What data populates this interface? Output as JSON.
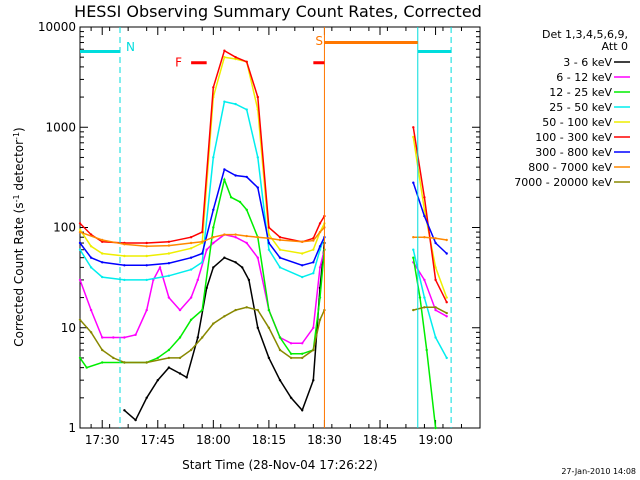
{
  "chart_data": {
    "type": "line",
    "title": "HESSI Observing Summary Count Rates, Corrected",
    "xlabel": "Start Time (28-Nov-04 17:26:22)",
    "ylabel": "Corrected Count Rate (s⁻¹ detector⁻¹)",
    "ylabel_main": "Corrected Count Rate (s",
    "ylabel_sup1": "-1",
    "ylabel_mid": " detector",
    "ylabel_sup2": "-1",
    "ylabel_end": ")",
    "yscale": "log",
    "ylim": [
      1,
      10000
    ],
    "xlim_min": [
      17.4,
      19.2
    ],
    "xticks": [
      {
        "v": 17.5,
        "label": "17:30"
      },
      {
        "v": 17.75,
        "label": "17:45"
      },
      {
        "v": 18.0,
        "label": "18:00"
      },
      {
        "v": 18.25,
        "label": "18:15"
      },
      {
        "v": 18.5,
        "label": "18:30"
      },
      {
        "v": 18.75,
        "label": "18:45"
      },
      {
        "v": 19.0,
        "label": "19:00"
      }
    ],
    "yticks": [
      {
        "v": 1,
        "label": "1"
      },
      {
        "v": 10,
        "label": "10"
      },
      {
        "v": 100,
        "label": "100"
      },
      {
        "v": 1000,
        "label": "1000"
      },
      {
        "v": 10000,
        "label": "10000"
      }
    ],
    "legend_header": [
      "Det 1,3,4,5,6,9,",
      "Att 0"
    ],
    "legend_position": "right",
    "series": [
      {
        "name": "3 - 6 keV",
        "color": "#000000",
        "points": [
          [
            17.6,
            1.5
          ],
          [
            17.65,
            1.2
          ],
          [
            17.7,
            2.0
          ],
          [
            17.75,
            3
          ],
          [
            17.8,
            4
          ],
          [
            17.85,
            3.5
          ],
          [
            17.88,
            3.2
          ],
          [
            17.93,
            8
          ],
          [
            17.97,
            25
          ],
          [
            18.0,
            40
          ],
          [
            18.05,
            50
          ],
          [
            18.1,
            45
          ],
          [
            18.13,
            40
          ],
          [
            18.16,
            30
          ],
          [
            18.2,
            10
          ],
          [
            18.25,
            5
          ],
          [
            18.3,
            3
          ],
          [
            18.35,
            2
          ],
          [
            18.4,
            1.5
          ],
          [
            18.45,
            3
          ],
          [
            18.48,
            25
          ],
          [
            18.5,
            70
          ]
        ]
      },
      {
        "name": "6 - 12 keV",
        "color": "#ff00ff",
        "points": [
          [
            17.4,
            30
          ],
          [
            17.45,
            15
          ],
          [
            17.5,
            8
          ],
          [
            17.55,
            8
          ],
          [
            17.6,
            8
          ],
          [
            17.65,
            8.5
          ],
          [
            17.7,
            15
          ],
          [
            17.73,
            30
          ],
          [
            17.76,
            40
          ],
          [
            17.8,
            20
          ],
          [
            17.85,
            15
          ],
          [
            17.9,
            20
          ],
          [
            17.93,
            30
          ],
          [
            17.97,
            60
          ],
          [
            18.0,
            70
          ],
          [
            18.05,
            85
          ],
          [
            18.1,
            80
          ],
          [
            18.15,
            70
          ],
          [
            18.2,
            50
          ],
          [
            18.25,
            15
          ],
          [
            18.3,
            8
          ],
          [
            18.35,
            7
          ],
          [
            18.4,
            7
          ],
          [
            18.45,
            10
          ],
          [
            18.48,
            40
          ],
          [
            18.5,
            60
          ],
          [
            18.9,
            45
          ],
          [
            18.95,
            30
          ],
          [
            19.0,
            15
          ],
          [
            19.05,
            13
          ]
        ]
      },
      {
        "name": "12 - 25 keV",
        "color": "#00ee00",
        "points": [
          [
            17.4,
            5
          ],
          [
            17.43,
            4
          ],
          [
            17.5,
            4.5
          ],
          [
            17.6,
            4.5
          ],
          [
            17.7,
            4.5
          ],
          [
            17.75,
            5
          ],
          [
            17.8,
            6
          ],
          [
            17.85,
            8
          ],
          [
            17.9,
            12
          ],
          [
            17.95,
            15
          ],
          [
            18.0,
            100
          ],
          [
            18.05,
            300
          ],
          [
            18.08,
            200
          ],
          [
            18.12,
            180
          ],
          [
            18.15,
            150
          ],
          [
            18.2,
            80
          ],
          [
            18.25,
            15
          ],
          [
            18.3,
            8
          ],
          [
            18.35,
            5.5
          ],
          [
            18.4,
            5.5
          ],
          [
            18.45,
            6
          ],
          [
            18.48,
            20
          ],
          [
            18.5,
            60
          ],
          [
            18.9,
            50
          ],
          [
            18.93,
            20
          ],
          [
            18.96,
            6
          ],
          [
            19.0,
            1
          ]
        ]
      },
      {
        "name": "25 - 50 keV",
        "color": "#00eeee",
        "points": [
          [
            17.4,
            60
          ],
          [
            17.45,
            40
          ],
          [
            17.5,
            32
          ],
          [
            17.6,
            30
          ],
          [
            17.7,
            30
          ],
          [
            17.8,
            33
          ],
          [
            17.9,
            38
          ],
          [
            17.95,
            45
          ],
          [
            18.0,
            500
          ],
          [
            18.05,
            1800
          ],
          [
            18.1,
            1700
          ],
          [
            18.15,
            1500
          ],
          [
            18.2,
            500
          ],
          [
            18.25,
            60
          ],
          [
            18.3,
            40
          ],
          [
            18.4,
            32
          ],
          [
            18.45,
            35
          ],
          [
            18.48,
            60
          ],
          [
            18.5,
            80
          ],
          [
            18.9,
            60
          ],
          [
            18.95,
            20
          ],
          [
            19.0,
            8
          ],
          [
            19.05,
            5
          ]
        ]
      },
      {
        "name": "50 - 100 keV",
        "color": "#eeee00",
        "points": [
          [
            17.4,
            95
          ],
          [
            17.45,
            65
          ],
          [
            17.5,
            55
          ],
          [
            17.6,
            52
          ],
          [
            17.7,
            52
          ],
          [
            17.8,
            55
          ],
          [
            17.9,
            62
          ],
          [
            17.95,
            70
          ],
          [
            18.0,
            2000
          ],
          [
            18.05,
            5000
          ],
          [
            18.1,
            4800
          ],
          [
            18.15,
            4500
          ],
          [
            18.2,
            1500
          ],
          [
            18.25,
            85
          ],
          [
            18.3,
            60
          ],
          [
            18.4,
            55
          ],
          [
            18.45,
            60
          ],
          [
            18.48,
            90
          ],
          [
            18.5,
            110
          ],
          [
            18.9,
            800
          ],
          [
            18.95,
            150
          ],
          [
            19.0,
            40
          ],
          [
            19.05,
            20
          ]
        ]
      },
      {
        "name": "100 - 300 keV",
        "color": "#ff0000",
        "points": [
          [
            17.4,
            110
          ],
          [
            17.45,
            85
          ],
          [
            17.5,
            72
          ],
          [
            17.6,
            70
          ],
          [
            17.7,
            70
          ],
          [
            17.8,
            72
          ],
          [
            17.9,
            80
          ],
          [
            17.95,
            90
          ],
          [
            18.0,
            2500
          ],
          [
            18.05,
            5800
          ],
          [
            18.1,
            5000
          ],
          [
            18.15,
            4500
          ],
          [
            18.2,
            2000
          ],
          [
            18.25,
            100
          ],
          [
            18.3,
            80
          ],
          [
            18.4,
            72
          ],
          [
            18.45,
            78
          ],
          [
            18.48,
            110
          ],
          [
            18.5,
            130
          ],
          [
            18.9,
            1000
          ],
          [
            18.95,
            200
          ],
          [
            19.0,
            30
          ],
          [
            19.05,
            18
          ]
        ]
      },
      {
        "name": "300 - 800 keV",
        "color": "#0000ff",
        "points": [
          [
            17.4,
            70
          ],
          [
            17.45,
            50
          ],
          [
            17.5,
            45
          ],
          [
            17.6,
            42
          ],
          [
            17.7,
            42
          ],
          [
            17.8,
            44
          ],
          [
            17.9,
            50
          ],
          [
            17.95,
            55
          ],
          [
            18.0,
            150
          ],
          [
            18.05,
            380
          ],
          [
            18.1,
            330
          ],
          [
            18.15,
            320
          ],
          [
            18.2,
            250
          ],
          [
            18.25,
            70
          ],
          [
            18.3,
            50
          ],
          [
            18.4,
            42
          ],
          [
            18.45,
            45
          ],
          [
            18.48,
            65
          ],
          [
            18.5,
            80
          ],
          [
            18.9,
            280
          ],
          [
            18.95,
            130
          ],
          [
            19.0,
            70
          ],
          [
            19.05,
            55
          ]
        ]
      },
      {
        "name": "800 - 7000 keV",
        "color": "#ff8800",
        "points": [
          [
            17.4,
            90
          ],
          [
            17.5,
            75
          ],
          [
            17.6,
            68
          ],
          [
            17.7,
            65
          ],
          [
            17.8,
            66
          ],
          [
            17.9,
            70
          ],
          [
            17.95,
            72
          ],
          [
            18.0,
            80
          ],
          [
            18.05,
            85
          ],
          [
            18.1,
            85
          ],
          [
            18.15,
            82
          ],
          [
            18.2,
            80
          ],
          [
            18.25,
            78
          ],
          [
            18.3,
            75
          ],
          [
            18.4,
            72
          ],
          [
            18.45,
            74
          ],
          [
            18.48,
            90
          ],
          [
            18.5,
            100
          ],
          [
            18.9,
            80
          ],
          [
            18.95,
            80
          ],
          [
            19.0,
            78
          ],
          [
            19.05,
            75
          ]
        ]
      },
      {
        "name": "7000 - 20000 keV",
        "color": "#888800",
        "points": [
          [
            17.4,
            12
          ],
          [
            17.45,
            9
          ],
          [
            17.5,
            6
          ],
          [
            17.55,
            5
          ],
          [
            17.6,
            4.5
          ],
          [
            17.7,
            4.5
          ],
          [
            17.8,
            5
          ],
          [
            17.85,
            5
          ],
          [
            17.9,
            6
          ],
          [
            17.95,
            8
          ],
          [
            18.0,
            11
          ],
          [
            18.05,
            13
          ],
          [
            18.1,
            15
          ],
          [
            18.15,
            16
          ],
          [
            18.2,
            15
          ],
          [
            18.25,
            10
          ],
          [
            18.3,
            6
          ],
          [
            18.35,
            5
          ],
          [
            18.4,
            5
          ],
          [
            18.45,
            6
          ],
          [
            18.48,
            12
          ],
          [
            18.5,
            15
          ],
          [
            18.9,
            15
          ],
          [
            18.95,
            16
          ],
          [
            19.0,
            16
          ],
          [
            19.05,
            14
          ]
        ]
      }
    ],
    "night_markers": [
      {
        "label": "N",
        "x": 17.58
      },
      {
        "label": "",
        "x": 19.07
      }
    ],
    "night_segments": [
      {
        "x1": 17.4,
        "x2": 17.58,
        "y": 5700
      },
      {
        "x1": 18.92,
        "x2": 19.07,
        "y": 5700
      }
    ],
    "flare_marker": {
      "label": "F",
      "x1": 17.9,
      "x2": 17.97,
      "y": 4400
    },
    "saa_marker": {
      "label": "S",
      "x1": 18.45,
      "x2": 18.5,
      "y": 4400
    },
    "saa_block": {
      "x1": 18.5,
      "x2": 18.92,
      "y": 7000
    },
    "footer_date": "27-Jan-2010 14:08"
  }
}
